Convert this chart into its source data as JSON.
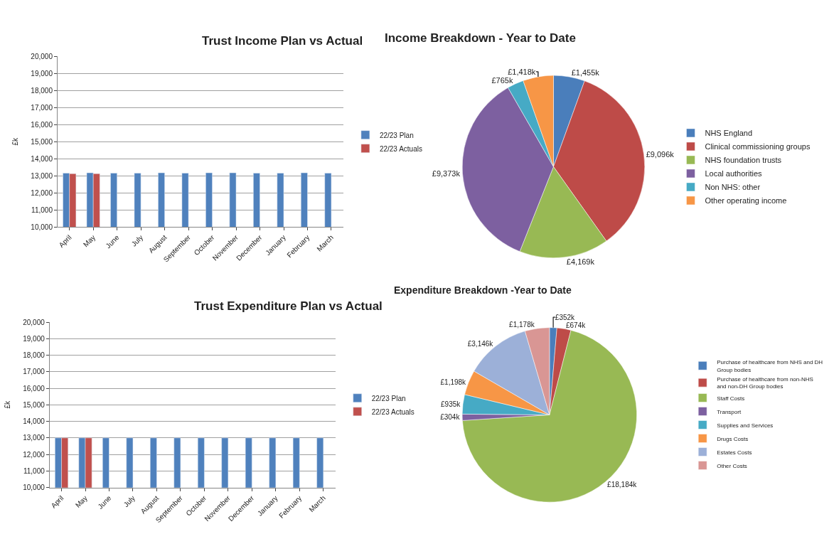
{
  "chart_data": [
    {
      "type": "bar",
      "title": "Trust Income Plan vs Actual",
      "ylabel": "£k",
      "categories": [
        "April",
        "May",
        "June",
        "July",
        "August",
        "September",
        "October",
        "November",
        "December",
        "January",
        "February",
        "March"
      ],
      "series": [
        {
          "name": "22/23 Plan",
          "color": "#4f81bd",
          "values": [
            13150,
            13170,
            13150,
            13150,
            13170,
            13150,
            13170,
            13170,
            13150,
            13150,
            13170,
            13150
          ]
        },
        {
          "name": "22/23 Actuals",
          "color": "#c0504d",
          "values": [
            13120,
            13120,
            null,
            null,
            null,
            null,
            null,
            null,
            null,
            null,
            null,
            null
          ]
        }
      ],
      "ylim": [
        10000,
        20000
      ],
      "yticks": [
        {
          "value": 10000,
          "label": "10,000"
        },
        {
          "value": 11000,
          "label": "11,000"
        },
        {
          "value": 12000,
          "label": "12,000"
        },
        {
          "value": 13000,
          "label": "13,000"
        },
        {
          "value": 14000,
          "label": "14,000"
        },
        {
          "value": 15000,
          "label": "15,000"
        },
        {
          "value": 16000,
          "label": "16,000"
        },
        {
          "value": 17000,
          "label": "17,000"
        },
        {
          "value": 18000,
          "label": "18,000"
        },
        {
          "value": 19000,
          "label": "19,000"
        },
        {
          "value": 20000,
          "label": "20,000"
        }
      ],
      "grid": "y",
      "legend": "right"
    },
    {
      "type": "pie",
      "title": "Income Breakdown - Year to Date",
      "categories": [
        "NHS England",
        "Clinical commissioning groups",
        "NHS foundation trusts",
        "Local authorities",
        "Non NHS: other",
        "Other operating income"
      ],
      "values": [
        1455,
        9096,
        4169,
        9373,
        765,
        1418
      ],
      "value_labels": [
        "£1,455k",
        "£9,096k",
        "£4,169k",
        "£9,373k",
        "£765k",
        "£1,418k"
      ],
      "colors": [
        "#4a7ebb",
        "#be4b48",
        "#98b954",
        "#7d60a0",
        "#46aac5",
        "#f79646"
      ],
      "legend": "right"
    },
    {
      "type": "bar",
      "title": "Trust Expenditure Plan vs Actual",
      "ylabel": "£k",
      "categories": [
        "April",
        "May",
        "June",
        "July",
        "August",
        "September",
        "October",
        "November",
        "December",
        "January",
        "February",
        "March"
      ],
      "series": [
        {
          "name": "22/23 Plan",
          "color": "#4f81bd",
          "values": [
            13000,
            13000,
            13000,
            13000,
            13000,
            13000,
            13000,
            13000,
            13000,
            13000,
            13000,
            13000
          ]
        },
        {
          "name": "22/23 Actuals",
          "color": "#c0504d",
          "values": [
            13000,
            13000,
            null,
            null,
            null,
            null,
            null,
            null,
            null,
            null,
            null,
            null
          ]
        }
      ],
      "ylim": [
        10000,
        20000
      ],
      "yticks": [
        {
          "value": 10000,
          "label": "10,000"
        },
        {
          "value": 11000,
          "label": "11,000"
        },
        {
          "value": 12000,
          "label": "12,000"
        },
        {
          "value": 13000,
          "label": "13,000"
        },
        {
          "value": 14000,
          "label": "14,000"
        },
        {
          "value": 15000,
          "label": "15,000"
        },
        {
          "value": 16000,
          "label": "16,000"
        },
        {
          "value": 17000,
          "label": "17,000"
        },
        {
          "value": 18000,
          "label": "18,000"
        },
        {
          "value": 19000,
          "label": "19,000"
        },
        {
          "value": 20000,
          "label": "20,000"
        }
      ],
      "grid": "y",
      "legend": "right"
    },
    {
      "type": "pie",
      "title": "Expenditure Breakdown -Year to Date",
      "categories": [
        "Purchase of healthcare from NHS and DH Group bodies",
        "Purchase of healthcare from non-NHS and non-DH Group bodies",
        "Staff Costs",
        "Transport",
        "Supplies and Services",
        "Drugs Costs",
        "Estates Costs",
        "Other Costs"
      ],
      "values": [
        352,
        674,
        18184,
        304,
        935,
        1198,
        3146,
        1178
      ],
      "value_labels": [
        "£352k",
        "£674k",
        "£18,184k",
        "£304k",
        "£935k",
        "£1,198k",
        "£3,146k",
        "£1,178k"
      ],
      "colors": [
        "#4a7ebb",
        "#be4b48",
        "#98b954",
        "#7d60a0",
        "#46aac5",
        "#f79646",
        "#9cb0d8",
        "#d99694"
      ],
      "legend": "right"
    }
  ]
}
